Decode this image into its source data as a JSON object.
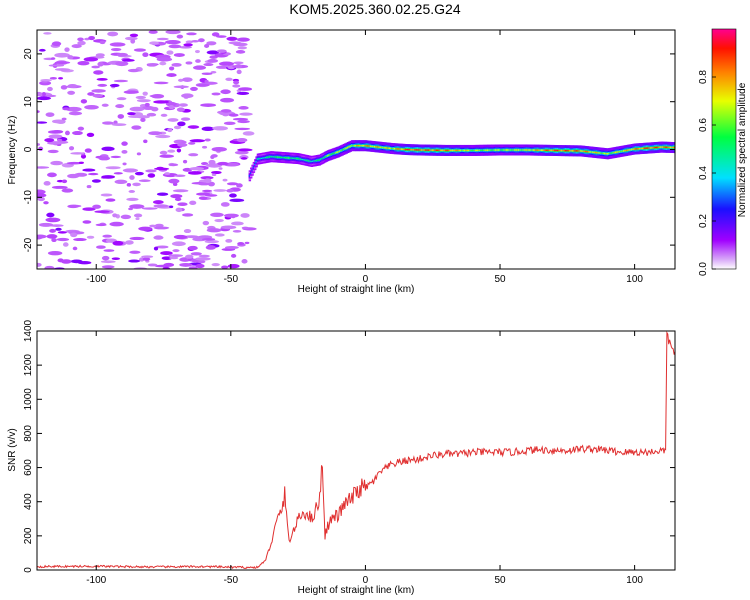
{
  "title": "KOM5.2025.360.02.25.G24",
  "spectrogram": {
    "xlabel": "Height of straight line (km)",
    "ylabel": "Frequency (Hz)",
    "xlim": [
      -122,
      115
    ],
    "ylim": [
      -25,
      25
    ],
    "xticks": [
      -100,
      -50,
      0,
      50,
      100
    ],
    "yticks": [
      -20,
      -10,
      0,
      10,
      20
    ],
    "colorbar": {
      "label": "Normalized spectral amplitude",
      "range": [
        0,
        1
      ],
      "ticks": [
        0.0,
        0.2,
        0.4,
        0.6,
        0.8
      ],
      "tick_labels": [
        "0.0",
        "0.2",
        "0.4",
        "0.6",
        "0.8"
      ]
    },
    "noise_region_x": [
      -122,
      -43
    ],
    "signal_track": {
      "x": [
        -43,
        -40,
        -35,
        -30,
        -25,
        -20,
        -17,
        -14,
        -10,
        -5,
        0,
        5,
        10,
        15,
        20,
        30,
        40,
        50,
        60,
        70,
        80,
        85,
        90,
        95,
        100,
        105,
        110,
        115
      ],
      "freq": [
        -5.5,
        -2.0,
        -1.5,
        -1.7,
        -1.9,
        -2.5,
        -2.2,
        -1.3,
        -0.5,
        0.8,
        0.8,
        0.5,
        0.2,
        0.0,
        -0.1,
        -0.2,
        -0.2,
        -0.1,
        -0.1,
        -0.2,
        -0.3,
        -0.6,
        -0.9,
        -0.4,
        0.1,
        0.3,
        0.5,
        0.4
      ],
      "amp": [
        0.3,
        0.45,
        0.55,
        0.6,
        0.55,
        0.5,
        0.55,
        0.65,
        0.7,
        0.75,
        0.85,
        0.8,
        0.75,
        0.95,
        0.95,
        0.9,
        0.7,
        0.7,
        0.75,
        0.95,
        0.9,
        0.8,
        0.7,
        0.75,
        0.85,
        0.95,
        0.9,
        0.9
      ]
    }
  },
  "chart_data": {
    "type": "line",
    "xlabel": "Height of straight line (km)",
    "ylabel": "SNR (v/v)",
    "xlim": [
      -122,
      115
    ],
    "ylim": [
      0,
      1400
    ],
    "xticks": [
      -100,
      -50,
      0,
      50,
      100
    ],
    "yticks": [
      0,
      200,
      400,
      600,
      800,
      1000,
      1200,
      1400
    ],
    "color": "#e03030",
    "x": [
      -122,
      -100,
      -80,
      -60,
      -45,
      -40,
      -37,
      -35,
      -33,
      -31,
      -30,
      -29,
      -28,
      -26,
      -24,
      -22,
      -20,
      -18,
      -17,
      -16,
      -15.5,
      -15,
      -14,
      -12,
      -10,
      -8,
      -5,
      -2,
      0,
      3,
      6,
      10,
      15,
      20,
      25,
      30,
      35,
      40,
      45,
      50,
      55,
      60,
      65,
      70,
      75,
      80,
      85,
      90,
      95,
      100,
      105,
      110,
      111.5,
      112,
      113,
      114,
      115
    ],
    "y": [
      20,
      22,
      18,
      20,
      15,
      15,
      60,
      160,
      280,
      360,
      440,
      250,
      170,
      260,
      320,
      340,
      300,
      370,
      420,
      650,
      400,
      200,
      260,
      310,
      320,
      380,
      420,
      480,
      480,
      520,
      580,
      620,
      640,
      650,
      670,
      680,
      680,
      690,
      690,
      690,
      690,
      700,
      705,
      700,
      700,
      710,
      710,
      700,
      690,
      690,
      690,
      700,
      700,
      1380,
      1330,
      1300,
      1280
    ]
  }
}
